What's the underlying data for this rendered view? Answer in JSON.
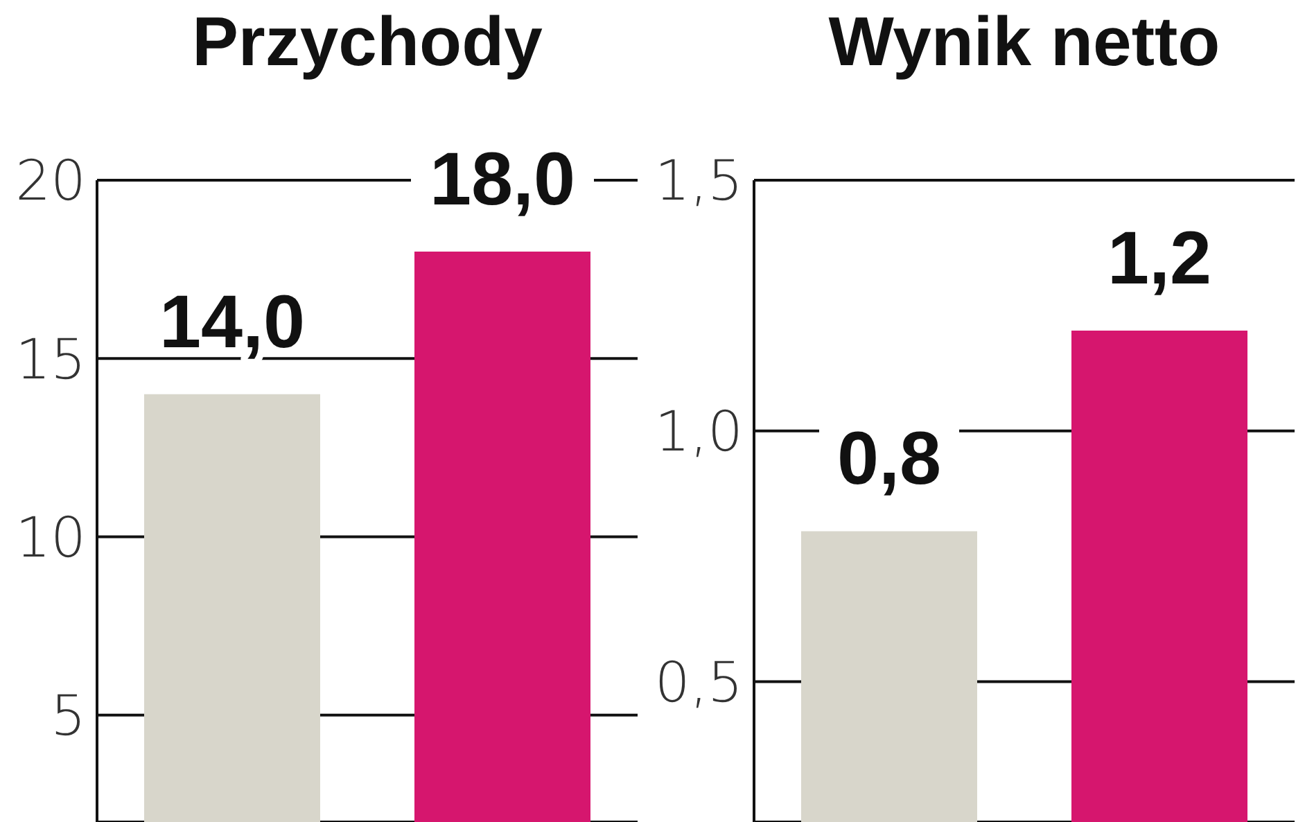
{
  "chart_data": [
    {
      "type": "bar",
      "title": "Przychody",
      "categories": [
        null,
        null
      ],
      "values": [
        14.0,
        18.0
      ],
      "colors": [
        "#d8d6cb",
        "#d6166e"
      ],
      "value_labels": [
        "14,0",
        "18,0"
      ],
      "ylim": [
        2,
        20
      ],
      "yticks": [
        5,
        10,
        15,
        20
      ],
      "grid": "y"
    },
    {
      "type": "bar",
      "title": "Wynik netto",
      "categories": [
        null,
        null
      ],
      "values": [
        0.8,
        1.2
      ],
      "colors": [
        "#d8d6cb",
        "#d6166e"
      ],
      "value_labels": [
        "0,8",
        "1,2"
      ],
      "ylim": [
        0.22,
        1.5
      ],
      "yticks": [
        {
          "value": 0.5,
          "label": "0,5"
        },
        {
          "value": 1.0,
          "label": "1,0"
        },
        {
          "value": 1.5,
          "label": "1,5"
        }
      ],
      "grid": "y"
    }
  ]
}
